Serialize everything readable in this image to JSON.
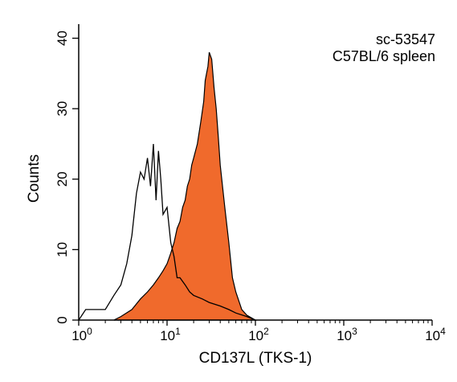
{
  "chart_data": {
    "type": "area",
    "xlabel": "CD137L (TKS-1)",
    "ylabel": "Counts",
    "xscale": "log",
    "xlim": [
      1,
      10000
    ],
    "ylim": [
      0,
      42
    ],
    "grid": false,
    "x_ticks": [
      {
        "value": 1,
        "base": "10",
        "exp": "0"
      },
      {
        "value": 10,
        "base": "10",
        "exp": "1"
      },
      {
        "value": 100,
        "base": "10",
        "exp": "2"
      },
      {
        "value": 1000,
        "base": "10",
        "exp": "3"
      },
      {
        "value": 10000,
        "base": "10",
        "exp": "4"
      }
    ],
    "y_ticks": [
      {
        "value": 0,
        "label": "0"
      },
      {
        "value": 10,
        "label": "10"
      },
      {
        "value": 20,
        "label": "20"
      },
      {
        "value": 30,
        "label": "30"
      },
      {
        "value": 40,
        "label": "40"
      }
    ],
    "annotations": [
      "sc-53547",
      "C57BL/6 spleen"
    ],
    "series": [
      {
        "style": "outline",
        "color": "#000000",
        "x": [
          1.0,
          1.2,
          1.5,
          2.0,
          2.5,
          3.0,
          3.5,
          4.0,
          4.5,
          5.0,
          5.5,
          6.0,
          6.5,
          7.0,
          7.5,
          8.0,
          8.5,
          9.0,
          10.0,
          11.0,
          12.0,
          13.0,
          14.0,
          16.0,
          18.0,
          20.0,
          25.0,
          30.0,
          40.0,
          50.0,
          60.0,
          80.0,
          100.0
        ],
        "y": [
          0,
          1.5,
          1.5,
          1.5,
          3.5,
          5,
          8,
          12,
          18,
          21,
          20,
          23,
          19,
          25,
          17,
          24,
          20,
          15,
          16,
          11,
          9,
          6,
          6,
          5,
          4,
          3.5,
          3,
          2.5,
          2,
          1.5,
          1,
          0.5,
          0
        ]
      },
      {
        "style": "filled",
        "color": "#f06a2c",
        "x": [
          2.5,
          3.0,
          4.0,
          5.0,
          6.0,
          7.0,
          8.0,
          9.0,
          10.0,
          11.0,
          12.0,
          13.0,
          14.0,
          15.0,
          16.0,
          17.0,
          18.0,
          19.0,
          20.0,
          22.0,
          24.0,
          26.0,
          27.0,
          28.0,
          29.0,
          30.0,
          32.0,
          34.0,
          36.0,
          38.0,
          40.0,
          45.0,
          50.0,
          55.0,
          60.0,
          70.0,
          80.0,
          100.0
        ],
        "y": [
          0,
          0.5,
          1.5,
          3,
          4,
          5,
          6,
          7,
          8,
          9.5,
          11,
          13,
          14,
          16,
          17,
          19,
          20,
          22,
          23,
          25,
          28,
          31,
          34,
          35,
          36,
          38,
          37,
          33,
          30,
          26,
          22,
          16,
          11,
          6,
          4,
          1.5,
          0.7,
          0
        ]
      }
    ]
  }
}
